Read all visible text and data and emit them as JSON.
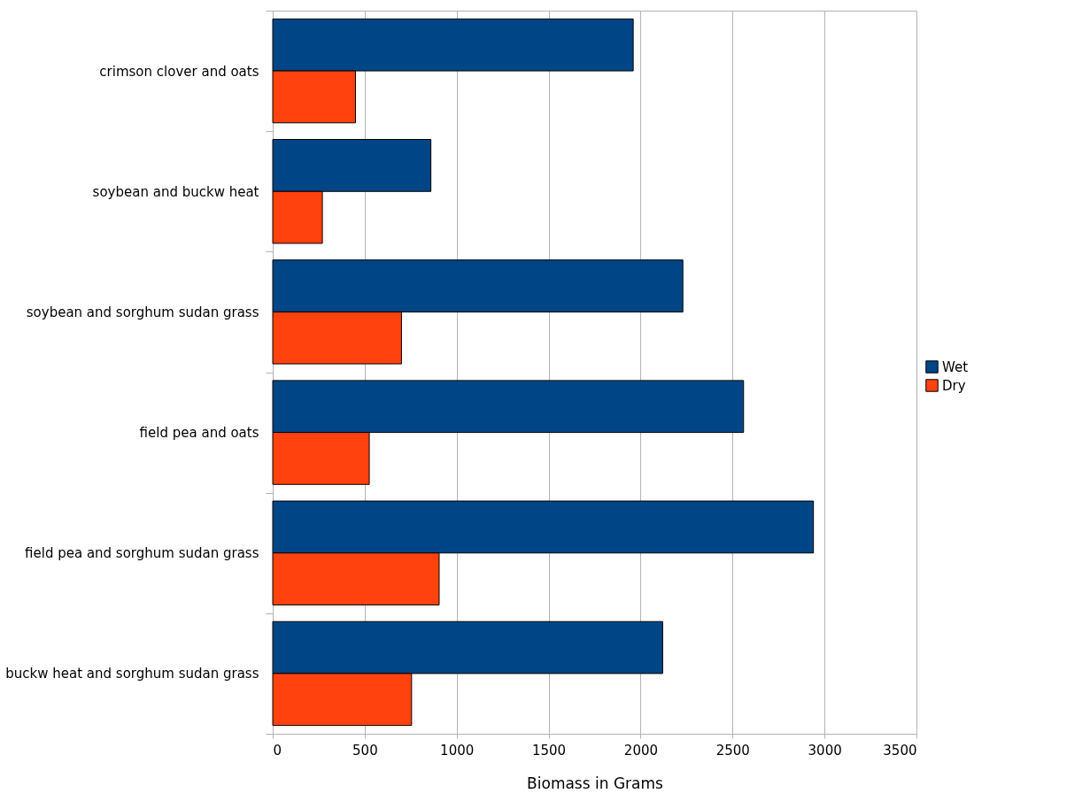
{
  "chart_data": {
    "type": "bar",
    "orientation": "horizontal",
    "xlabel": "Biomass in Grams",
    "categories": [
      "crimson clover and oats",
      "soybean and buckw heat",
      "soybean and sorghum sudan grass",
      "field pea and oats",
      "field pea and sorghum sudan grass",
      "buckw heat and sorghum sudan grass"
    ],
    "series": [
      {
        "name": "Wet",
        "color": "#004586",
        "values": [
          1960,
          860,
          2230,
          2560,
          2940,
          2120
        ]
      },
      {
        "name": "Dry",
        "color": "#ff420e",
        "values": [
          450,
          270,
          700,
          525,
          905,
          755
        ]
      }
    ],
    "xlim": [
      0,
      3500
    ],
    "xticks": [
      0,
      500,
      1000,
      1500,
      2000,
      2500,
      3000,
      3500
    ],
    "grid": "x",
    "legend": "right"
  }
}
